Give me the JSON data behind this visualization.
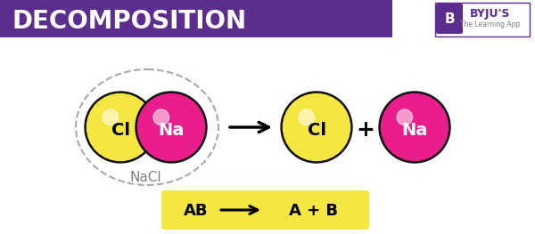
{
  "title": "DECOMPOSITION",
  "title_bg_color": "#5b2d8e",
  "title_text_color": "#ffffff",
  "bg_color": "#ffffff",
  "yellow_color": "#f5e642",
  "magenta_color": "#e91e8c",
  "black_outline": "#111111",
  "nacl_label": "NaCl",
  "cl_label": "Cl",
  "na_label": "Na",
  "formula_bg": "#f5e642",
  "plus_sign": "+",
  "dashed_circle_color": "#aaaaaa",
  "byju_logo_color": "#5b2d8e"
}
